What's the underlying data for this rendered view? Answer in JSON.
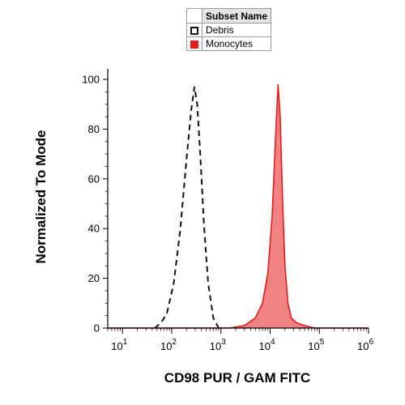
{
  "legend": {
    "header": "Subset Name",
    "items": [
      {
        "label": "Debris",
        "style": "dashed-outline",
        "color": "#111111"
      },
      {
        "label": "Monocytes",
        "style": "filled",
        "color": "#e31b1b"
      }
    ]
  },
  "chart_data": {
    "type": "area",
    "xlabel": "CD98 PUR / GAM FITC",
    "ylabel": "Normalized To Mode",
    "x_scale": "log",
    "xlim": [
      5,
      1000000
    ],
    "ylim": [
      0,
      100
    ],
    "x_ticks": [
      {
        "base": "10",
        "exp": "1"
      },
      {
        "base": "10",
        "exp": "2"
      },
      {
        "base": "10",
        "exp": "3"
      },
      {
        "base": "10",
        "exp": "4"
      },
      {
        "base": "10",
        "exp": "5"
      },
      {
        "base": "10",
        "exp": "6"
      }
    ],
    "y_ticks": [
      "0",
      "20",
      "40",
      "60",
      "80",
      "100"
    ],
    "grid": false,
    "legend_position": "top-center",
    "series": [
      {
        "name": "Debris",
        "style": "dashed-outline",
        "color": "#111111",
        "points": [
          [
            45,
            0
          ],
          [
            60,
            2
          ],
          [
            80,
            6
          ],
          [
            110,
            18
          ],
          [
            150,
            40
          ],
          [
            200,
            68
          ],
          [
            250,
            88
          ],
          [
            290,
            97
          ],
          [
            330,
            90
          ],
          [
            380,
            70
          ],
          [
            450,
            42
          ],
          [
            550,
            18
          ],
          [
            700,
            4
          ],
          [
            900,
            0
          ]
        ]
      },
      {
        "name": "Monocytes",
        "style": "filled",
        "color": "#e31b1b",
        "points": [
          [
            5,
            0
          ],
          [
            1500,
            0
          ],
          [
            3000,
            1
          ],
          [
            5000,
            4
          ],
          [
            7000,
            10
          ],
          [
            9000,
            22
          ],
          [
            11000,
            45
          ],
          [
            13000,
            78
          ],
          [
            14500,
            98
          ],
          [
            16000,
            85
          ],
          [
            18000,
            50
          ],
          [
            20000,
            25
          ],
          [
            23000,
            10
          ],
          [
            27000,
            4
          ],
          [
            35000,
            2
          ],
          [
            50000,
            1
          ],
          [
            80000,
            0
          ],
          [
            1000000,
            0
          ]
        ]
      }
    ]
  }
}
